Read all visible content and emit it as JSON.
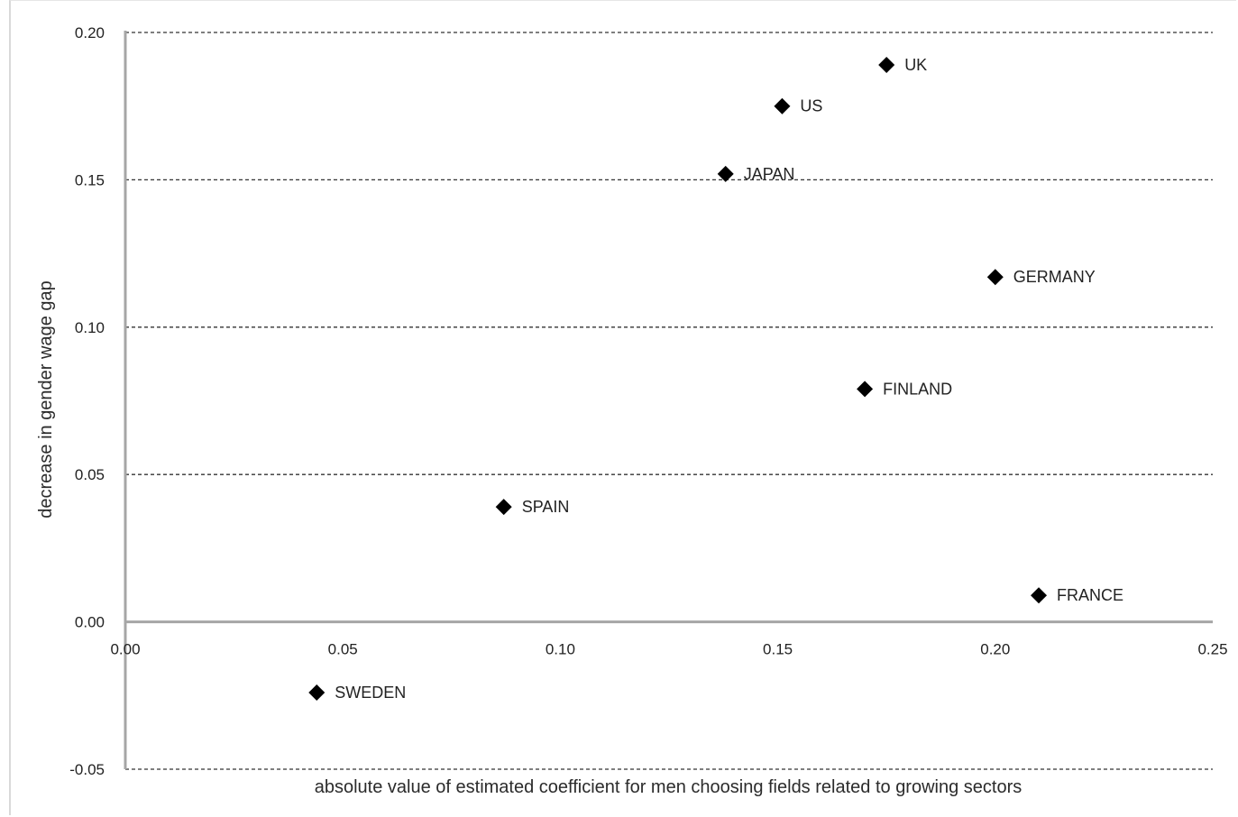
{
  "chart_data": {
    "type": "scatter",
    "title": "",
    "xlabel": "absolute value of estimated coefficient for men choosing  fields  related to growing sectors",
    "ylabel": "decrease in gender wage gap",
    "xlim": [
      0,
      0.25
    ],
    "ylim": [
      -0.05,
      0.2
    ],
    "x_ticks": [
      "0.00",
      "0.05",
      "0.10",
      "0.15",
      "0.20",
      "0.25"
    ],
    "y_ticks": [
      "-0.05",
      "0.00",
      "0.05",
      "0.10",
      "0.15",
      "0.20"
    ],
    "grid": "horizontal dashed",
    "marker": "diamond",
    "colors": {
      "marker": "#000000",
      "axis": "#a6a6a6",
      "grid": "#333333"
    },
    "points": [
      {
        "label": "UK",
        "x": 0.175,
        "y": 0.189
      },
      {
        "label": "US",
        "x": 0.151,
        "y": 0.175
      },
      {
        "label": "JAPAN",
        "x": 0.138,
        "y": 0.152
      },
      {
        "label": "GERMANY",
        "x": 0.2,
        "y": 0.117
      },
      {
        "label": "FINLAND",
        "x": 0.17,
        "y": 0.079
      },
      {
        "label": "SPAIN",
        "x": 0.087,
        "y": 0.039
      },
      {
        "label": "FRANCE",
        "x": 0.21,
        "y": 0.009
      },
      {
        "label": "SWEDEN",
        "x": 0.044,
        "y": -0.024
      }
    ]
  }
}
